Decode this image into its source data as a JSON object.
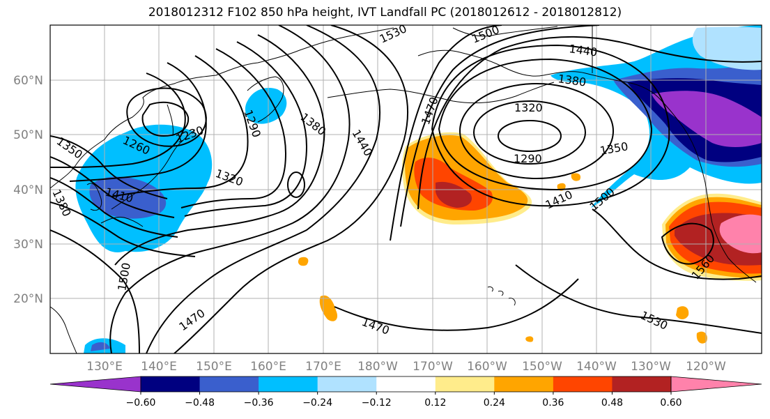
{
  "title": "2018012312 F102 850 hPa height, IVT Landfall PC (2018012612 - 2018012812)",
  "map": {
    "lat_ticks": [
      "60°N",
      "50°N",
      "40°N",
      "30°N",
      "20°N"
    ],
    "lon_ticks": [
      "130°E",
      "140°E",
      "150°E",
      "160°E",
      "170°E",
      "180°W",
      "170°W",
      "160°W",
      "150°W",
      "140°W",
      "130°W",
      "120°W"
    ],
    "tick_color": "#808080",
    "grid_color": "#b0b0b0",
    "contour_color": "#000000",
    "contour_labels": [
      {
        "text": "1530"
      },
      {
        "text": "1500"
      },
      {
        "text": "1440"
      },
      {
        "text": "1380"
      },
      {
        "text": "1320"
      },
      {
        "text": "1290"
      },
      {
        "text": "1350"
      },
      {
        "text": "1410"
      },
      {
        "text": "1500"
      },
      {
        "text": "1560"
      },
      {
        "text": "1530"
      },
      {
        "text": "1470"
      },
      {
        "text": "1470"
      },
      {
        "text": "1500"
      },
      {
        "text": "1320"
      },
      {
        "text": "1440"
      },
      {
        "text": "1380"
      },
      {
        "text": "1290"
      },
      {
        "text": "1470"
      },
      {
        "text": "1230"
      },
      {
        "text": "1260"
      },
      {
        "text": "1350"
      },
      {
        "text": "1410"
      },
      {
        "text": "1380"
      }
    ]
  },
  "colorbar": {
    "ticks": [
      "−0.60",
      "−0.48",
      "−0.36",
      "−0.24",
      "−0.12",
      "0.12",
      "0.24",
      "0.36",
      "0.48",
      "0.60"
    ],
    "colors": [
      "#9933cc",
      "#000080",
      "#3a5fcd",
      "#00bfff",
      "#b0e2ff",
      "#ffffff",
      "#ffec8b",
      "#ffa500",
      "#ff4500",
      "#b22222",
      "#ff82ab"
    ]
  }
}
